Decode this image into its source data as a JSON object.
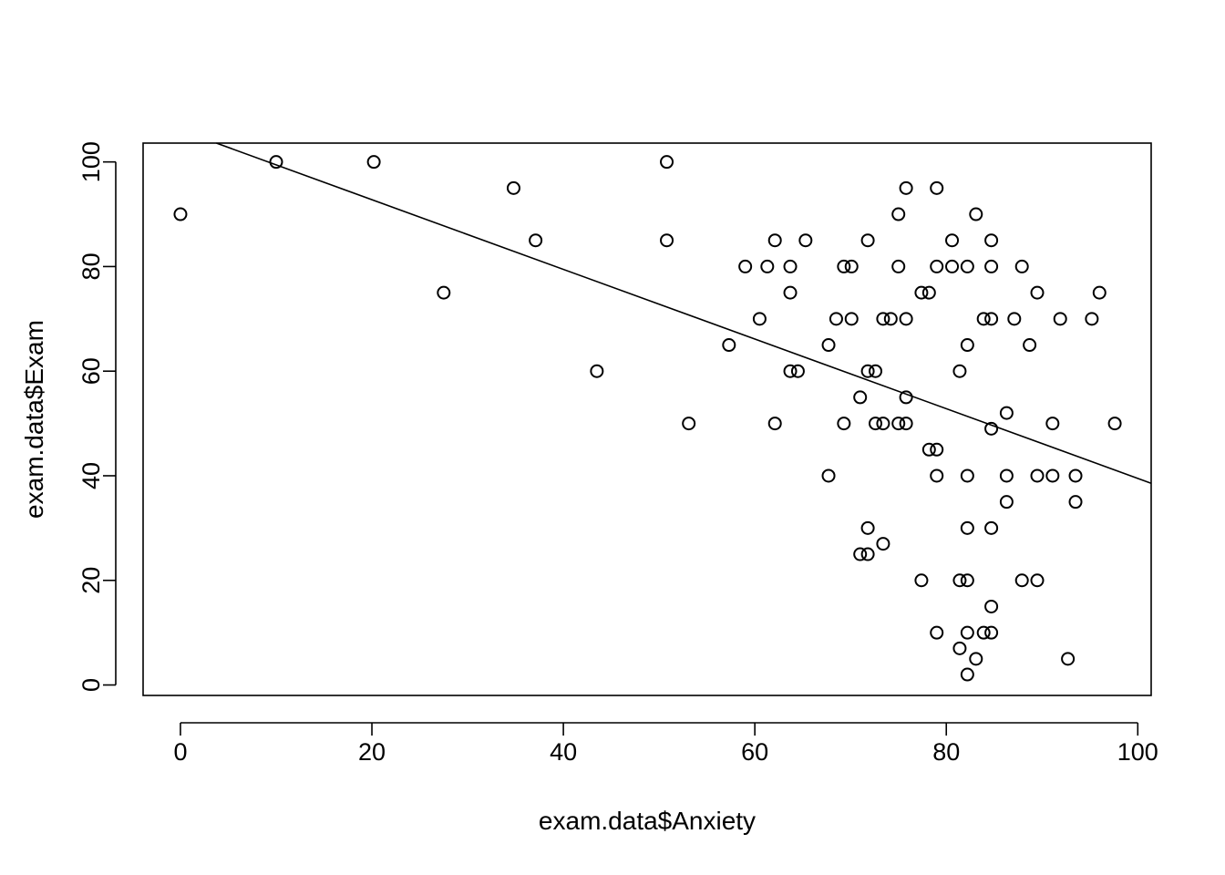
{
  "chart_data": {
    "type": "scatter",
    "title": "",
    "xlabel": "exam.data$Anxiety",
    "ylabel": "exam.data$Exam",
    "xlim": [
      -3.9,
      101.4
    ],
    "ylim": [
      -2,
      103.6
    ],
    "x_ticks": [
      0,
      20,
      40,
      60,
      80,
      100
    ],
    "y_ticks": [
      0,
      20,
      40,
      60,
      80,
      100
    ],
    "x_tick_labels": [
      "0",
      "20",
      "40",
      "60",
      "80",
      "100"
    ],
    "y_tick_labels": [
      "0",
      "20",
      "40",
      "60",
      "80",
      "100"
    ],
    "grid": false,
    "regression_line": {
      "intercept": 106.1,
      "slope": -0.666
    },
    "points": [
      [
        0,
        90
      ],
      [
        10,
        100
      ],
      [
        20.2,
        100
      ],
      [
        27.5,
        75
      ],
      [
        34.8,
        95
      ],
      [
        37.1,
        85
      ],
      [
        43.5,
        60
      ],
      [
        50.8,
        100
      ],
      [
        50.8,
        85
      ],
      [
        53.1,
        50
      ],
      [
        57.3,
        65
      ],
      [
        59,
        80
      ],
      [
        60.5,
        70
      ],
      [
        61.3,
        80
      ],
      [
        62.1,
        85
      ],
      [
        62.1,
        50
      ],
      [
        63.7,
        80
      ],
      [
        63.7,
        75
      ],
      [
        63.7,
        60
      ],
      [
        64.5,
        60
      ],
      [
        65.3,
        85
      ],
      [
        67.7,
        65
      ],
      [
        67.7,
        40
      ],
      [
        68.5,
        70
      ],
      [
        69.3,
        80
      ],
      [
        69.3,
        50
      ],
      [
        70.1,
        80
      ],
      [
        70.1,
        70
      ],
      [
        71,
        55
      ],
      [
        71,
        25
      ],
      [
        71.8,
        85
      ],
      [
        71.8,
        60
      ],
      [
        71.8,
        30
      ],
      [
        71.8,
        25
      ],
      [
        72.6,
        60
      ],
      [
        72.6,
        50
      ],
      [
        73.4,
        70
      ],
      [
        73.4,
        50
      ],
      [
        73.4,
        27
      ],
      [
        74.2,
        70
      ],
      [
        75,
        90
      ],
      [
        75,
        80
      ],
      [
        75,
        50
      ],
      [
        75.8,
        95
      ],
      [
        75.8,
        70
      ],
      [
        75.8,
        55
      ],
      [
        75.8,
        50
      ],
      [
        77.4,
        75
      ],
      [
        77.4,
        20
      ],
      [
        78.2,
        75
      ],
      [
        78.2,
        45
      ],
      [
        79,
        95
      ],
      [
        79,
        80
      ],
      [
        79,
        45
      ],
      [
        79,
        40
      ],
      [
        79,
        10
      ],
      [
        80.6,
        85
      ],
      [
        80.6,
        80
      ],
      [
        81.4,
        60
      ],
      [
        81.4,
        20
      ],
      [
        81.4,
        7
      ],
      [
        82.2,
        80
      ],
      [
        82.2,
        65
      ],
      [
        82.2,
        40
      ],
      [
        82.2,
        30
      ],
      [
        82.2,
        20
      ],
      [
        82.2,
        10
      ],
      [
        82.2,
        2
      ],
      [
        83.1,
        90
      ],
      [
        83.1,
        5
      ],
      [
        83.9,
        70
      ],
      [
        83.9,
        10
      ],
      [
        84.7,
        85
      ],
      [
        84.7,
        80
      ],
      [
        84.7,
        70
      ],
      [
        84.7,
        49
      ],
      [
        84.7,
        30
      ],
      [
        84.7,
        15
      ],
      [
        84.7,
        10
      ],
      [
        86.3,
        52
      ],
      [
        86.3,
        40
      ],
      [
        86.3,
        35
      ],
      [
        87.1,
        70
      ],
      [
        87.9,
        80
      ],
      [
        87.9,
        20
      ],
      [
        88.7,
        65
      ],
      [
        89.5,
        75
      ],
      [
        89.5,
        40
      ],
      [
        89.5,
        20
      ],
      [
        91.1,
        50
      ],
      [
        91.1,
        40
      ],
      [
        91.9,
        70
      ],
      [
        92.7,
        5
      ],
      [
        93.5,
        40
      ],
      [
        93.5,
        35
      ],
      [
        95.2,
        70
      ],
      [
        96,
        75
      ],
      [
        97.6,
        50
      ]
    ]
  }
}
